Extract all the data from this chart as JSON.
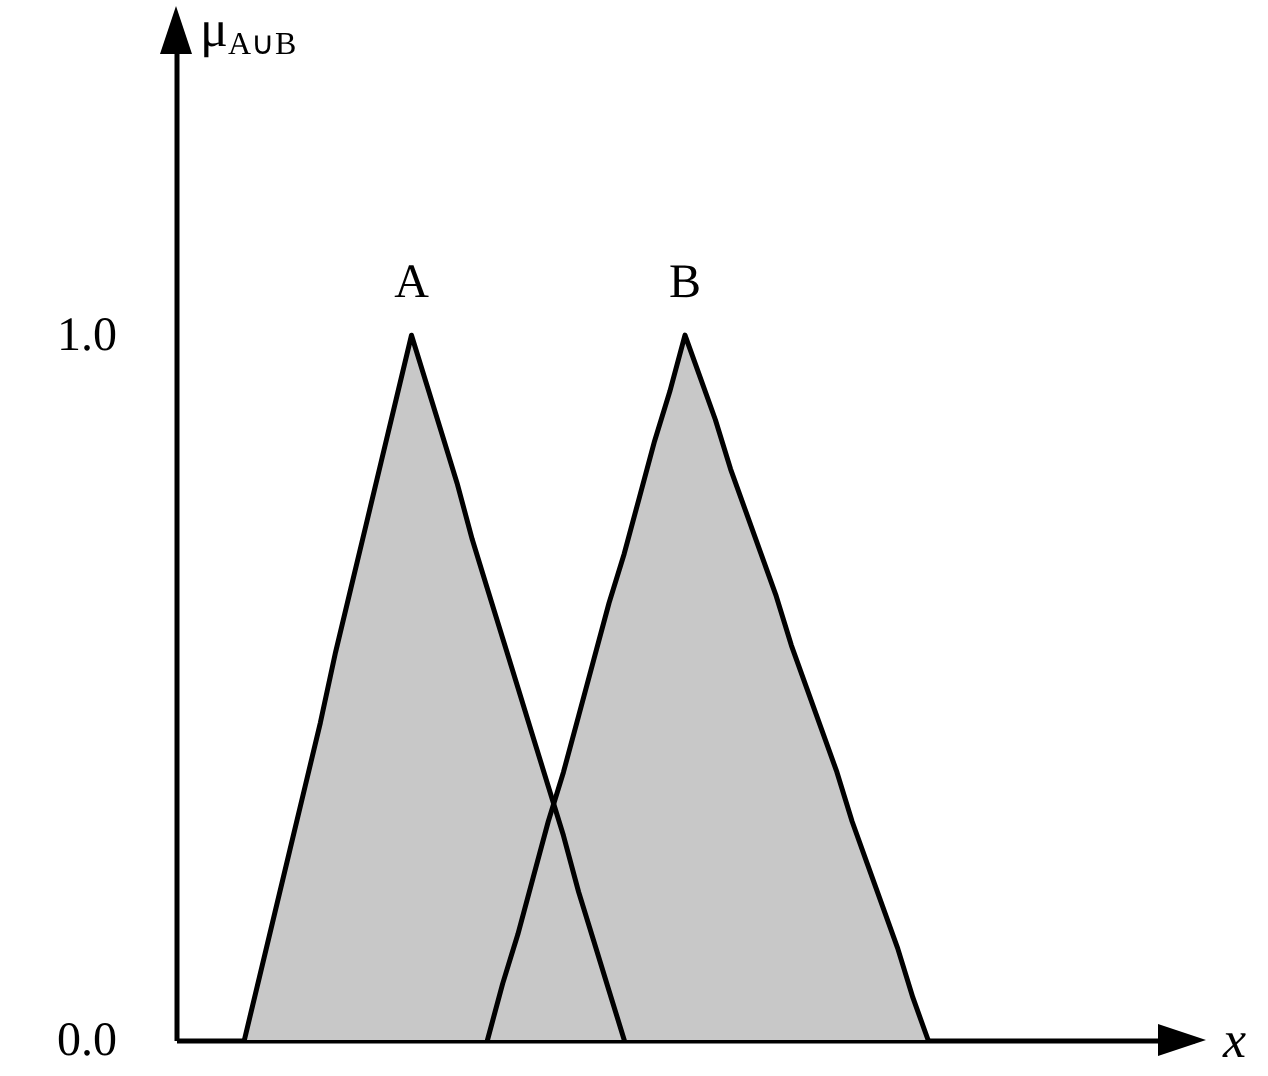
{
  "chart_data": {
    "type": "area",
    "ylabel": "μ$_{A∪B}$",
    "xlabel": "x",
    "categories": [
      null,
      null,
      null,
      null,
      null,
      null,
      null,
      null,
      null,
      null,
      null,
      null,
      null,
      null,
      null,
      null,
      null,
      null,
      null,
      null,
      null,
      null,
      null,
      null,
      null,
      null,
      null,
      null,
      null,
      null,
      null,
      null,
      null,
      null,
      null,
      null,
      null,
      null,
      null,
      null,
      null,
      null,
      null,
      null,
      null,
      null,
      null,
      null,
      null,
      null,
      null,
      null,
      null,
      null,
      null,
      null,
      null,
      null,
      null,
      null,
      null,
      null,
      null,
      null,
      null,
      null,
      null
    ],
    "series": [
      {
        "name": "A",
        "color": "#c8c8c8",
        "values": [
          null,
          null,
          null,
          null,
          0,
          0.09,
          0.18,
          0.27,
          0.36,
          0.45,
          0.55,
          0.64,
          0.73,
          0.82,
          0.91,
          1.0,
          0.93,
          0.86,
          0.79,
          0.71,
          0.64,
          0.57,
          0.5,
          0.43,
          0.36,
          0.29,
          0.21,
          0.14,
          0.07,
          0,
          null,
          null,
          null,
          null,
          null,
          null,
          null,
          null,
          null,
          null,
          null,
          null,
          null,
          null,
          null,
          null,
          null,
          null,
          null,
          null,
          null,
          null,
          null,
          null,
          null,
          null,
          null,
          null,
          null,
          null,
          null,
          null,
          null,
          null,
          null,
          null,
          null
        ]
      },
      {
        "name": "B",
        "color": "#c8c8c8",
        "values": [
          null,
          null,
          null,
          null,
          null,
          null,
          null,
          null,
          null,
          null,
          null,
          null,
          null,
          null,
          null,
          null,
          null,
          null,
          null,
          null,
          0,
          0.08,
          0.15,
          0.23,
          0.31,
          0.38,
          0.46,
          0.54,
          0.62,
          0.69,
          0.77,
          0.85,
          0.92,
          1.0,
          0.94,
          0.88,
          0.81,
          0.75,
          0.69,
          0.63,
          0.56,
          0.5,
          0.44,
          0.38,
          0.31,
          0.25,
          0.19,
          0.13,
          0.06,
          0,
          null,
          null,
          null,
          null,
          null,
          null,
          null,
          null,
          null,
          null,
          null,
          null,
          null,
          null,
          null,
          null,
          null
        ]
      }
    ],
    "ylim": [
      0,
      1.45
    ],
    "yticks": [
      {
        "value": 0,
        "label": "0.0"
      },
      {
        "value": 1,
        "label": "1.0"
      }
    ],
    "tick_labels": "y"
  }
}
